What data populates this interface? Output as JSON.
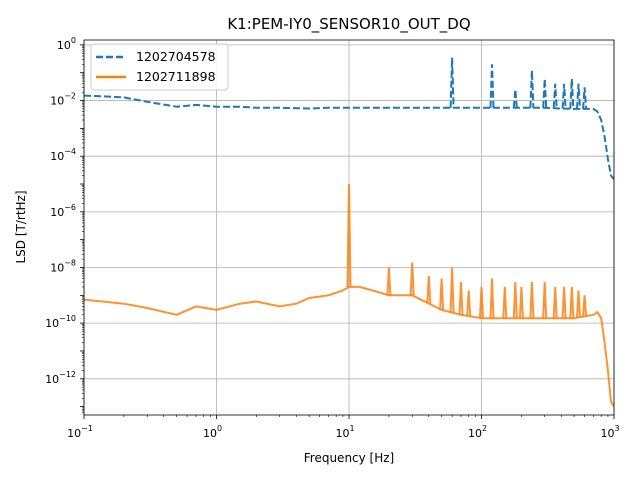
{
  "chart_data": {
    "type": "line",
    "title": "K1:PEM-IY0_SENSOR10_OUT_DQ",
    "xlabel": "Frequency [Hz]",
    "ylabel": "LSD [T/rtHz]",
    "xscale": "log",
    "yscale": "log",
    "xlim": [
      0.1,
      1000
    ],
    "ylim": [
      5e-14,
      1.5
    ],
    "grid": true,
    "legend_position": "top-left",
    "x_ticks": [
      {
        "value": 0.1,
        "base": "10",
        "exp": "−1"
      },
      {
        "value": 1,
        "base": "10",
        "exp": "0"
      },
      {
        "value": 10,
        "base": "10",
        "exp": "1"
      },
      {
        "value": 100,
        "base": "10",
        "exp": "2"
      },
      {
        "value": 1000,
        "base": "10",
        "exp": "3"
      }
    ],
    "y_ticks": [
      {
        "value": 1e-12,
        "base": "10",
        "exp": "−12"
      },
      {
        "value": 1e-10,
        "base": "10",
        "exp": "−10"
      },
      {
        "value": 1e-08,
        "base": "10",
        "exp": "−8"
      },
      {
        "value": 1e-06,
        "base": "10",
        "exp": "−6"
      },
      {
        "value": 0.0001,
        "base": "10",
        "exp": "−4"
      },
      {
        "value": 0.01,
        "base": "10",
        "exp": "−2"
      },
      {
        "value": 1,
        "base": "10",
        "exp": "0"
      }
    ],
    "series": [
      {
        "name": "1202704578",
        "color": "#1f77b4",
        "dash": "dashed",
        "x": [
          0.1,
          0.15,
          0.2,
          0.3,
          0.5,
          0.7,
          1,
          1.5,
          2,
          3,
          5,
          7,
          10,
          15,
          20,
          30,
          50,
          60,
          80,
          100,
          120,
          150,
          200,
          250,
          300,
          400,
          500,
          600,
          700,
          750,
          800,
          850,
          900,
          950,
          1000
        ],
        "y": [
          0.015,
          0.014,
          0.013,
          0.009,
          0.006,
          0.007,
          0.006,
          0.006,
          0.0055,
          0.0055,
          0.0052,
          0.0055,
          0.0055,
          0.0055,
          0.0055,
          0.0055,
          0.0055,
          0.0055,
          0.0055,
          0.0055,
          0.0055,
          0.0055,
          0.0055,
          0.0055,
          0.0055,
          0.0052,
          0.005,
          0.005,
          0.005,
          0.004,
          0.002,
          0.0005,
          8e-05,
          2e-05,
          1.5e-05
        ],
        "peaks": [
          {
            "x": 60,
            "y": 0.35
          },
          {
            "x": 120,
            "y": 0.2
          },
          {
            "x": 180,
            "y": 0.025
          },
          {
            "x": 240,
            "y": 0.12
          },
          {
            "x": 300,
            "y": 0.06
          },
          {
            "x": 360,
            "y": 0.04
          },
          {
            "x": 420,
            "y": 0.04
          },
          {
            "x": 480,
            "y": 0.06
          },
          {
            "x": 540,
            "y": 0.04
          },
          {
            "x": 600,
            "y": 0.03
          }
        ]
      },
      {
        "name": "1202711898",
        "color": "#ff7f0e",
        "dash": "solid",
        "x": [
          0.1,
          0.2,
          0.3,
          0.5,
          0.7,
          1,
          1.5,
          2,
          3,
          4,
          5,
          7,
          9,
          10,
          12,
          15,
          20,
          30,
          50,
          70,
          100,
          150,
          200,
          300,
          500,
          700,
          750,
          800,
          850,
          900,
          950,
          1000
        ],
        "y": [
          7e-10,
          5e-10,
          3.5e-10,
          2e-10,
          4e-10,
          3e-10,
          5e-10,
          6e-10,
          4e-10,
          5e-10,
          8e-10,
          1e-09,
          1.5e-09,
          2e-09,
          2e-09,
          1.5e-09,
          1e-09,
          1e-09,
          3e-10,
          2e-10,
          1.5e-10,
          1.5e-10,
          1.5e-10,
          1.5e-10,
          1.5e-10,
          2e-10,
          2.5e-10,
          1.5e-10,
          2e-11,
          2e-12,
          1.5e-13,
          1e-13
        ],
        "peaks": [
          {
            "x": 10,
            "y": 1e-05
          },
          {
            "x": 20,
            "y": 1e-08
          },
          {
            "x": 30,
            "y": 1.5e-08
          },
          {
            "x": 40,
            "y": 5e-09
          },
          {
            "x": 50,
            "y": 4e-09
          },
          {
            "x": 60,
            "y": 1e-08
          },
          {
            "x": 70,
            "y": 3e-09
          },
          {
            "x": 80,
            "y": 1.5e-09
          },
          {
            "x": 100,
            "y": 2e-09
          },
          {
            "x": 120,
            "y": 4e-09
          },
          {
            "x": 150,
            "y": 2e-09
          },
          {
            "x": 180,
            "y": 3e-09
          },
          {
            "x": 200,
            "y": 2e-09
          },
          {
            "x": 240,
            "y": 3e-09
          },
          {
            "x": 300,
            "y": 3e-09
          },
          {
            "x": 360,
            "y": 2e-09
          },
          {
            "x": 420,
            "y": 2e-09
          },
          {
            "x": 480,
            "y": 2e-09
          },
          {
            "x": 540,
            "y": 1.5e-09
          },
          {
            "x": 600,
            "y": 1e-09
          }
        ]
      }
    ]
  }
}
